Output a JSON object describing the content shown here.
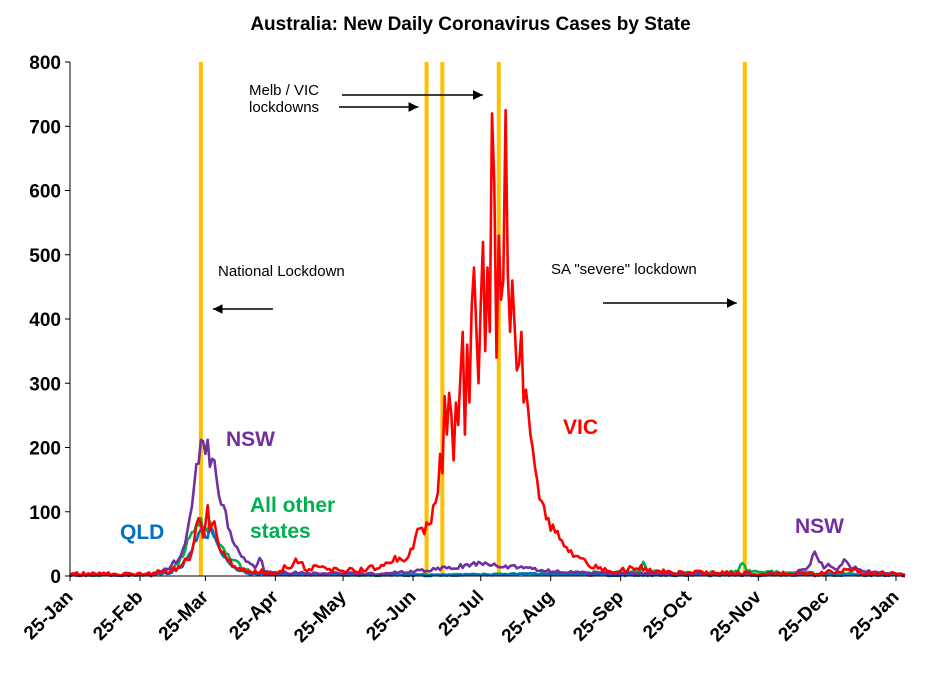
{
  "chart_data": {
    "type": "line",
    "title": "Australia: New Daily Coronavirus Cases by State",
    "xlabel": "",
    "ylabel": "",
    "ylim": [
      0,
      800
    ],
    "yticks": [
      0,
      100,
      200,
      300,
      400,
      500,
      600,
      700,
      800
    ],
    "xlim": [
      "2020-01-25",
      "2021-01-29"
    ],
    "xticks": [
      {
        "date": "2020-01-25",
        "label": "25-Jan"
      },
      {
        "date": "2020-02-25",
        "label": "25-Feb"
      },
      {
        "date": "2020-03-25",
        "label": "25-Mar"
      },
      {
        "date": "2020-04-25",
        "label": "25-Apr"
      },
      {
        "date": "2020-05-25",
        "label": "25-May"
      },
      {
        "date": "2020-06-25",
        "label": "25-Jun"
      },
      {
        "date": "2020-07-25",
        "label": "25-Jul"
      },
      {
        "date": "2020-08-25",
        "label": "25-Aug"
      },
      {
        "date": "2020-09-25",
        "label": "25-Sep"
      },
      {
        "date": "2020-10-25",
        "label": "25-Oct"
      },
      {
        "date": "2020-11-25",
        "label": "25-Nov"
      },
      {
        "date": "2020-12-25",
        "label": "25-Dec"
      },
      {
        "date": "2021-01-25",
        "label": "25-Jan"
      }
    ],
    "grid": false,
    "colors": {
      "VIC": "#ff0000",
      "NSW": "#7030a0",
      "QLD": "#0070c0",
      "Other": "#00b050",
      "lockdown": "#ffc000"
    },
    "lockdowns": [
      "2020-03-23",
      "2020-07-01",
      "2020-07-08",
      "2020-08-02",
      "2020-11-19"
    ],
    "annotations": [
      {
        "text": "National Lockdown",
        "arrow_to": "2020-03-23"
      },
      {
        "text": "Melb / VIC",
        "arrow_to": "2020-08-02"
      },
      {
        "text": "lockdowns",
        "arrow_to": "2020-07-08"
      },
      {
        "text": "SA \"severe\" lockdown",
        "arrow_to": "2020-11-19"
      }
    ],
    "series_labels": [
      {
        "series": "VIC",
        "text": "VIC"
      },
      {
        "series": "NSW",
        "text": "NSW"
      },
      {
        "series": "NSW",
        "text": "NSW"
      },
      {
        "series": "QLD",
        "text": "QLD"
      },
      {
        "series": "Other",
        "text": "All other"
      },
      {
        "series": "Other",
        "text": "states"
      }
    ],
    "series": [
      {
        "key": "Other",
        "points": [
          [
            "2020-01-25",
            0
          ],
          [
            "2020-03-01",
            0
          ],
          [
            "2020-03-10",
            10
          ],
          [
            "2020-03-15",
            30
          ],
          [
            "2020-03-18",
            60
          ],
          [
            "2020-03-21",
            80
          ],
          [
            "2020-03-23",
            90
          ],
          [
            "2020-03-25",
            75
          ],
          [
            "2020-03-27",
            85
          ],
          [
            "2020-03-29",
            60
          ],
          [
            "2020-03-31",
            50
          ],
          [
            "2020-04-03",
            35
          ],
          [
            "2020-04-06",
            25
          ],
          [
            "2020-04-10",
            12
          ],
          [
            "2020-04-15",
            4
          ],
          [
            "2020-04-20",
            2
          ],
          [
            "2020-05-10",
            1
          ],
          [
            "2020-06-10",
            0
          ],
          [
            "2020-07-30",
            1
          ],
          [
            "2020-09-01",
            3
          ],
          [
            "2020-10-03",
            5
          ],
          [
            "2020-10-05",
            22
          ],
          [
            "2020-10-07",
            6
          ],
          [
            "2020-10-20",
            3
          ],
          [
            "2020-11-10",
            4
          ],
          [
            "2020-11-16",
            7
          ],
          [
            "2020-11-18",
            20
          ],
          [
            "2020-11-20",
            6
          ],
          [
            "2020-12-20",
            3
          ],
          [
            "2021-01-29",
            1
          ]
        ]
      },
      {
        "key": "QLD",
        "points": [
          [
            "2020-01-25",
            0
          ],
          [
            "2020-03-01",
            0
          ],
          [
            "2020-03-10",
            5
          ],
          [
            "2020-03-15",
            15
          ],
          [
            "2020-03-18",
            35
          ],
          [
            "2020-03-21",
            55
          ],
          [
            "2020-03-23",
            72
          ],
          [
            "2020-03-25",
            60
          ],
          [
            "2020-03-27",
            78
          ],
          [
            "2020-03-29",
            62
          ],
          [
            "2020-03-31",
            45
          ],
          [
            "2020-04-02",
            30
          ],
          [
            "2020-04-05",
            18
          ],
          [
            "2020-04-09",
            8
          ],
          [
            "2020-04-14",
            2
          ],
          [
            "2020-05-01",
            1
          ],
          [
            "2020-07-01",
            0
          ],
          [
            "2020-08-20",
            2
          ],
          [
            "2020-09-20",
            0
          ],
          [
            "2021-01-29",
            0
          ]
        ]
      },
      {
        "key": "NSW",
        "points": [
          [
            "2020-01-25",
            0
          ],
          [
            "2020-02-20",
            0
          ],
          [
            "2020-03-01",
            2
          ],
          [
            "2020-03-08",
            10
          ],
          [
            "2020-03-13",
            25
          ],
          [
            "2020-03-16",
            50
          ],
          [
            "2020-03-18",
            90
          ],
          [
            "2020-03-20",
            140
          ],
          [
            "2020-03-22",
            175
          ],
          [
            "2020-03-24",
            210
          ],
          [
            "2020-03-25",
            190
          ],
          [
            "2020-03-26",
            212
          ],
          [
            "2020-03-27",
            170
          ],
          [
            "2020-03-29",
            180
          ],
          [
            "2020-03-31",
            125
          ],
          [
            "2020-04-02",
            110
          ],
          [
            "2020-04-04",
            75
          ],
          [
            "2020-04-06",
            55
          ],
          [
            "2020-04-08",
            45
          ],
          [
            "2020-04-10",
            30
          ],
          [
            "2020-04-13",
            22
          ],
          [
            "2020-04-16",
            12
          ],
          [
            "2020-04-18",
            28
          ],
          [
            "2020-04-20",
            8
          ],
          [
            "2020-04-28",
            4
          ],
          [
            "2020-05-15",
            3
          ],
          [
            "2020-06-10",
            2
          ],
          [
            "2020-07-01",
            8
          ],
          [
            "2020-07-10",
            12
          ],
          [
            "2020-07-20",
            15
          ],
          [
            "2020-07-25",
            20
          ],
          [
            "2020-08-02",
            14
          ],
          [
            "2020-08-10",
            12
          ],
          [
            "2020-08-20",
            8
          ],
          [
            "2020-09-01",
            5
          ],
          [
            "2020-09-25",
            3
          ],
          [
            "2020-10-25",
            2
          ],
          [
            "2020-12-10",
            2
          ],
          [
            "2020-12-16",
            10
          ],
          [
            "2020-12-18",
            18
          ],
          [
            "2020-12-20",
            38
          ],
          [
            "2020-12-22",
            22
          ],
          [
            "2020-12-24",
            12
          ],
          [
            "2020-12-27",
            15
          ],
          [
            "2020-12-30",
            10
          ],
          [
            "2021-01-02",
            26
          ],
          [
            "2021-01-05",
            12
          ],
          [
            "2021-01-10",
            8
          ],
          [
            "2021-01-15",
            6
          ],
          [
            "2021-01-20",
            4
          ],
          [
            "2021-01-29",
            2
          ]
        ]
      },
      {
        "key": "VIC",
        "points": [
          [
            "2020-01-25",
            0
          ],
          [
            "2020-03-01",
            0
          ],
          [
            "2020-03-12",
            8
          ],
          [
            "2020-03-18",
            25
          ],
          [
            "2020-03-20",
            55
          ],
          [
            "2020-03-22",
            90
          ],
          [
            "2020-03-24",
            60
          ],
          [
            "2020-03-26",
            110
          ],
          [
            "2020-03-27",
            70
          ],
          [
            "2020-03-29",
            85
          ],
          [
            "2020-03-31",
            45
          ],
          [
            "2020-04-03",
            30
          ],
          [
            "2020-04-06",
            15
          ],
          [
            "2020-04-10",
            8
          ],
          [
            "2020-04-15",
            4
          ],
          [
            "2020-04-25",
            3
          ],
          [
            "2020-05-01",
            12
          ],
          [
            "2020-05-05",
            20
          ],
          [
            "2020-05-09",
            8
          ],
          [
            "2020-05-15",
            14
          ],
          [
            "2020-05-20",
            6
          ],
          [
            "2020-06-01",
            5
          ],
          [
            "2020-06-10",
            12
          ],
          [
            "2020-06-15",
            20
          ],
          [
            "2020-06-20",
            25
          ],
          [
            "2020-06-23",
            30
          ],
          [
            "2020-06-26",
            60
          ],
          [
            "2020-06-29",
            75
          ],
          [
            "2020-07-02",
            80
          ],
          [
            "2020-07-04",
            110
          ],
          [
            "2020-07-06",
            130
          ],
          [
            "2020-07-07",
            190
          ],
          [
            "2020-07-08",
            160
          ],
          [
            "2020-07-09",
            280
          ],
          [
            "2020-07-10",
            220
          ],
          [
            "2020-07-11",
            285
          ],
          [
            "2020-07-12",
            250
          ],
          [
            "2020-07-13",
            180
          ],
          [
            "2020-07-14",
            270
          ],
          [
            "2020-07-15",
            235
          ],
          [
            "2020-07-16",
            310
          ],
          [
            "2020-07-17",
            380
          ],
          [
            "2020-07-18",
            220
          ],
          [
            "2020-07-19",
            360
          ],
          [
            "2020-07-20",
            270
          ],
          [
            "2020-07-21",
            420
          ],
          [
            "2020-07-22",
            480
          ],
          [
            "2020-07-23",
            390
          ],
          [
            "2020-07-24",
            300
          ],
          [
            "2020-07-25",
            420
          ],
          [
            "2020-07-26",
            520
          ],
          [
            "2020-07-27",
            350
          ],
          [
            "2020-07-28",
            480
          ],
          [
            "2020-07-29",
            380
          ],
          [
            "2020-07-30",
            720
          ],
          [
            "2020-07-31",
            610
          ],
          [
            "2020-08-01",
            340
          ],
          [
            "2020-08-02",
            530
          ],
          [
            "2020-08-03",
            430
          ],
          [
            "2020-08-04",
            460
          ],
          [
            "2020-08-05",
            725
          ],
          [
            "2020-08-06",
            470
          ],
          [
            "2020-08-07",
            380
          ],
          [
            "2020-08-08",
            460
          ],
          [
            "2020-08-09",
            390
          ],
          [
            "2020-08-10",
            320
          ],
          [
            "2020-08-11",
            330
          ],
          [
            "2020-08-12",
            380
          ],
          [
            "2020-08-13",
            270
          ],
          [
            "2020-08-14",
            290
          ],
          [
            "2020-08-15",
            260
          ],
          [
            "2020-08-16",
            220
          ],
          [
            "2020-08-17",
            200
          ],
          [
            "2020-08-18",
            170
          ],
          [
            "2020-08-19",
            150
          ],
          [
            "2020-08-20",
            120
          ],
          [
            "2020-08-22",
            110
          ],
          [
            "2020-08-24",
            90
          ],
          [
            "2020-08-26",
            80
          ],
          [
            "2020-08-28",
            70
          ],
          [
            "2020-08-30",
            55
          ],
          [
            "2020-09-01",
            45
          ],
          [
            "2020-09-04",
            30
          ],
          [
            "2020-09-07",
            28
          ],
          [
            "2020-09-10",
            20
          ],
          [
            "2020-09-13",
            12
          ],
          [
            "2020-09-17",
            8
          ],
          [
            "2020-09-22",
            5
          ],
          [
            "2020-09-28",
            8
          ],
          [
            "2020-10-03",
            10
          ],
          [
            "2020-10-10",
            5
          ],
          [
            "2020-10-20",
            3
          ],
          [
            "2020-11-01",
            2
          ],
          [
            "2020-11-15",
            1
          ],
          [
            "2020-12-20",
            0
          ],
          [
            "2021-01-01",
            5
          ],
          [
            "2021-01-05",
            8
          ],
          [
            "2021-01-10",
            2
          ],
          [
            "2021-01-29",
            0
          ]
        ]
      }
    ]
  }
}
